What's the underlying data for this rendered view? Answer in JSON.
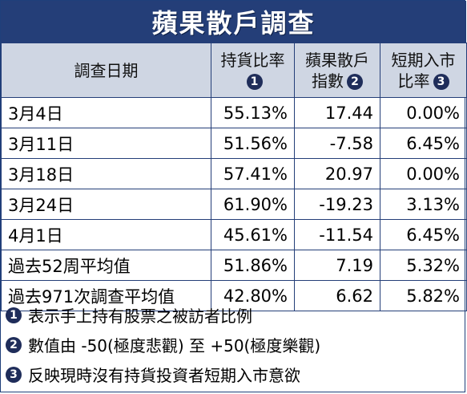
{
  "title": "蘋果散戶調查",
  "headers": {
    "date": "調查日期",
    "holding": "持貨比率",
    "holding_mark": "1",
    "index_l1": "蘋果散戶",
    "index_l2": "指數",
    "index_mark": "2",
    "short_l1": "短期入市",
    "short_l2": "比率",
    "short_mark": "3"
  },
  "rows": [
    {
      "date": "3月4日",
      "holding": "55.13%",
      "index": "17.44",
      "short": "0.00%"
    },
    {
      "date": "3月11日",
      "holding": "51.56%",
      "index": "-7.58",
      "short": "6.45%"
    },
    {
      "date": "3月18日",
      "holding": "57.41%",
      "index": "20.97",
      "short": "0.00%"
    },
    {
      "date": "3月24日",
      "holding": "61.90%",
      "index": "-19.23",
      "short": "3.13%"
    },
    {
      "date": "4月1日",
      "holding": "45.61%",
      "index": "-11.54",
      "short": "6.45%"
    },
    {
      "date": "過去52周平均值",
      "holding": "51.86%",
      "index": "7.19",
      "short": "5.32%"
    },
    {
      "date": "過去971次調查平均值",
      "holding": "42.80%",
      "index": "6.62",
      "short": "5.82%"
    }
  ],
  "notes": [
    {
      "mark": "1",
      "text": "表示手上持有股票之被訪者比例"
    },
    {
      "mark": "2",
      "text": "數值由 -50(極度悲觀) 至 +50(極度樂觀)"
    },
    {
      "mark": "3",
      "text": "反映現時沒有持貨投資者短期入市意欲"
    }
  ],
  "colors": {
    "title_bg": "#243e78",
    "header_bg": "#cfd6e3",
    "marker_bg": "#1f2d5a"
  }
}
